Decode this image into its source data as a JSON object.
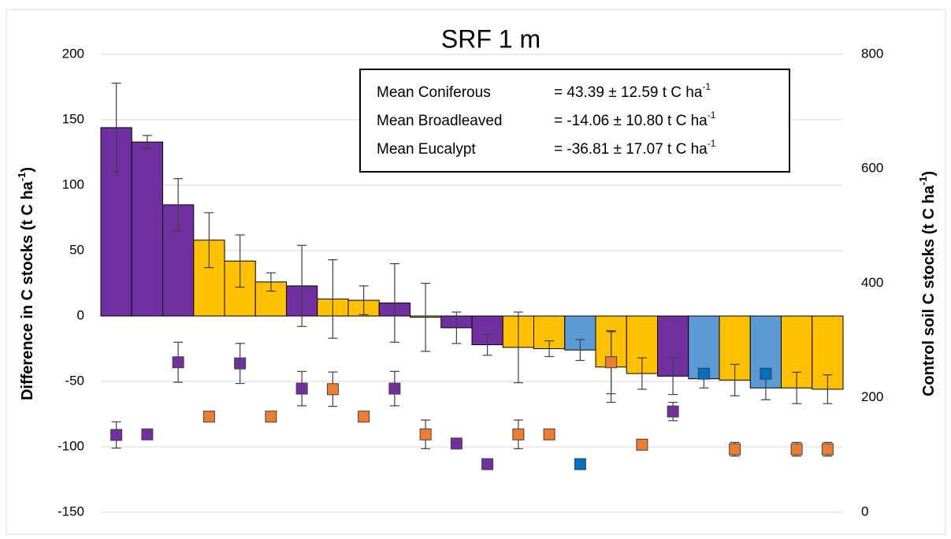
{
  "chart_data": {
    "type": "bar",
    "title": "SRF 1 m",
    "y_label": {
      "text": "Difference in C stocks (t C ha",
      "sup": "-1",
      "end": ")"
    },
    "y2_label": {
      "text": "Control soil C stocks (t C ha",
      "sup": "-1",
      "end": ")"
    },
    "ylim": [
      -150,
      200
    ],
    "yticks": [
      -150,
      -100,
      -50,
      0,
      50,
      100,
      150,
      200
    ],
    "y2lim": [
      0,
      800
    ],
    "y2ticks": [
      0,
      200,
      400,
      600,
      800
    ],
    "grid": true,
    "series": [
      {
        "type": "bar",
        "axis": "y",
        "values": [
          144,
          133,
          85,
          58,
          42,
          26,
          23,
          13,
          12,
          10,
          -1,
          -9,
          -22,
          -24,
          -25,
          -26,
          -39,
          -44,
          -46,
          -48,
          -49,
          -55,
          -55,
          -56
        ],
        "errors": [
          34,
          5,
          20,
          21,
          20,
          7,
          31,
          30,
          11,
          30,
          26,
          12,
          8,
          27,
          6,
          8,
          27,
          12,
          14,
          7,
          12,
          9,
          12,
          11
        ],
        "colors": [
          "#7030a0",
          "#7030a0",
          "#7030a0",
          "#ffc000",
          "#ffc000",
          "#ffc000",
          "#7030a0",
          "#ffc000",
          "#ffc000",
          "#7030a0",
          "#ffc000",
          "#7030a0",
          "#7030a0",
          "#ffc000",
          "#ffc000",
          "#5b9bd5",
          "#ffc000",
          "#ffc000",
          "#7030a0",
          "#5b9bd5",
          "#ffc000",
          "#5b9bd5",
          "#ffc000",
          "#ffc000"
        ]
      },
      {
        "type": "scatter",
        "axis": "y2",
        "values": [
          135,
          136,
          262,
          167,
          260,
          167,
          216,
          215,
          167,
          216,
          136,
          120,
          84,
          136,
          136,
          84,
          262,
          118,
          176,
          242,
          110,
          242,
          110,
          110
        ],
        "errors": [
          23,
          null,
          35,
          null,
          35,
          null,
          30,
          30,
          null,
          30,
          25,
          null,
          8,
          25,
          null,
          8,
          55,
          null,
          16,
          null,
          12,
          null,
          12,
          12
        ],
        "colors": [
          "#7030a0",
          "#7030a0",
          "#7030a0",
          "#ed7d31",
          "#7030a0",
          "#ed7d31",
          "#7030a0",
          "#ed7d31",
          "#ed7d31",
          "#7030a0",
          "#ed7d31",
          "#7030a0",
          "#7030a0",
          "#ed7d31",
          "#ed7d31",
          "#0070c0",
          "#ed7d31",
          "#ed7d31",
          "#7030a0",
          "#0070c0",
          "#ed7d31",
          "#0070c0",
          "#ed7d31",
          "#ed7d31"
        ]
      }
    ],
    "annotations": [
      {
        "label": "Mean Coniferous",
        "text": "=  43.39 ± 12.59 t C ha",
        "sup": "-1"
      },
      {
        "label": "Mean Broadleaved",
        "text": "= -14.06 ± 10.80 t C ha",
        "sup": "-1"
      },
      {
        "label": "Mean Eucalypt",
        "text": "= -36.81 ± 17.07 t C ha",
        "sup": "-1"
      }
    ]
  }
}
